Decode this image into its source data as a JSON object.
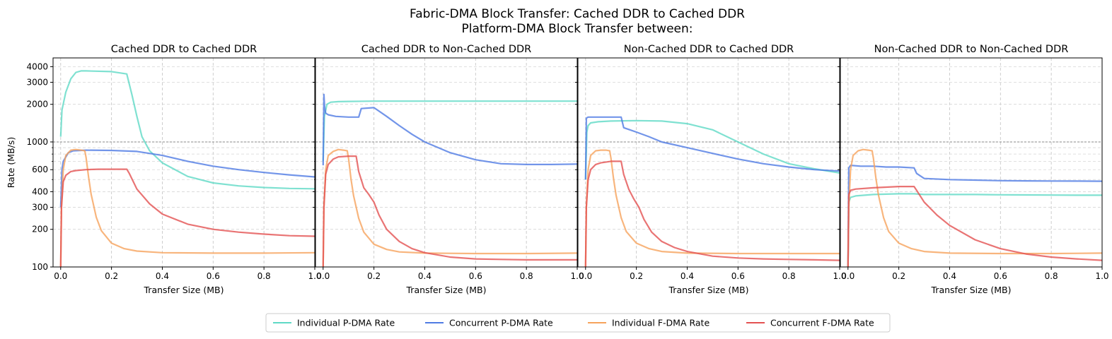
{
  "figure": {
    "title_line1": "Fabric-DMA Block Transfer: Cached DDR to Cached DDR",
    "title_line2": "Platform-DMA Block Transfer between:"
  },
  "legend": {
    "placement": "bottom-center",
    "items": [
      {
        "label": "Individual P-DMA Rate",
        "color": "#5fd9c6"
      },
      {
        "label": "Concurrent P-DMA Rate",
        "color": "#4f7be3"
      },
      {
        "label": "Individual F-DMA Rate",
        "color": "#f6a35c"
      },
      {
        "label": "Concurrent F-DMA Rate",
        "color": "#e35151"
      }
    ]
  },
  "chart_data": [
    {
      "type": "line",
      "title": "Cached DDR to Cached DDR",
      "xlabel": "Transfer Size (MB)",
      "ylabel": "Rate (MB/s)",
      "yscale": "log",
      "xlim": [
        -0.03,
        1.0
      ],
      "ylim": [
        100,
        4700
      ],
      "xticks": [
        "0.0",
        "0.2",
        "0.4",
        "0.6",
        "0.8",
        "1.0"
      ],
      "yticks": [
        "100",
        "200",
        "300",
        "400",
        "600",
        "1000",
        "2000",
        "3000",
        "4000"
      ],
      "reference_line_y": 1000,
      "grid": true,
      "series": [
        {
          "name": "Individual P-DMA Rate",
          "color": "#5fd9c6",
          "x": [
            0.0,
            0.005,
            0.02,
            0.04,
            0.06,
            0.08,
            0.1,
            0.2,
            0.26,
            0.28,
            0.3,
            0.32,
            0.35,
            0.4,
            0.5,
            0.6,
            0.7,
            0.8,
            0.9,
            1.0
          ],
          "y": [
            1100,
            1800,
            2500,
            3200,
            3600,
            3700,
            3700,
            3650,
            3500,
            2400,
            1600,
            1100,
            850,
            680,
            530,
            470,
            445,
            432,
            425,
            422
          ]
        },
        {
          "name": "Concurrent P-DMA Rate",
          "color": "#4f7be3",
          "x": [
            0.0,
            0.005,
            0.01,
            0.03,
            0.05,
            0.1,
            0.2,
            0.3,
            0.4,
            0.5,
            0.6,
            0.7,
            0.8,
            0.9,
            1.0
          ],
          "y": [
            300,
            600,
            700,
            820,
            850,
            860,
            855,
            840,
            780,
            700,
            640,
            600,
            570,
            545,
            525
          ]
        },
        {
          "name": "Individual F-DMA Rate",
          "color": "#f6a35c",
          "x": [
            0.0,
            0.003,
            0.01,
            0.02,
            0.04,
            0.06,
            0.08,
            0.095,
            0.1,
            0.11,
            0.12,
            0.14,
            0.16,
            0.2,
            0.25,
            0.3,
            0.4,
            0.6,
            0.8,
            1.0
          ],
          "y": [
            100,
            300,
            600,
            780,
            860,
            870,
            860,
            850,
            750,
            520,
            380,
            250,
            195,
            155,
            140,
            134,
            130,
            129,
            129,
            130
          ]
        },
        {
          "name": "Concurrent F-DMA Rate",
          "color": "#e35151",
          "x": [
            0.0,
            0.003,
            0.01,
            0.02,
            0.04,
            0.06,
            0.1,
            0.15,
            0.2,
            0.26,
            0.27,
            0.3,
            0.35,
            0.4,
            0.5,
            0.6,
            0.7,
            0.8,
            0.9,
            1.0
          ],
          "y": [
            100,
            300,
            480,
            540,
            580,
            590,
            600,
            605,
            605,
            605,
            560,
            420,
            320,
            265,
            220,
            200,
            190,
            183,
            178,
            176
          ]
        }
      ]
    },
    {
      "type": "line",
      "title": "Cached DDR to Non-Cached DDR",
      "xlabel": "Transfer Size (MB)",
      "ylabel": "",
      "yscale": "log",
      "xlim": [
        -0.03,
        1.0
      ],
      "ylim": [
        100,
        4700
      ],
      "xticks": [
        "0.0",
        "0.2",
        "0.4",
        "0.6",
        "0.8",
        "1.0"
      ],
      "yticks": [],
      "reference_line_y": 1000,
      "grid": true,
      "series": [
        {
          "name": "Individual P-DMA Rate",
          "color": "#5fd9c6",
          "x": [
            0.0,
            0.005,
            0.015,
            0.03,
            0.06,
            0.1,
            0.2,
            0.4,
            0.6,
            0.8,
            1.0
          ],
          "y": [
            700,
            1600,
            2000,
            2080,
            2100,
            2110,
            2120,
            2120,
            2120,
            2120,
            2120
          ]
        },
        {
          "name": "Concurrent P-DMA Rate",
          "color": "#4f7be3",
          "x": [
            0.0,
            0.003,
            0.006,
            0.01,
            0.02,
            0.05,
            0.1,
            0.14,
            0.15,
            0.2,
            0.25,
            0.3,
            0.35,
            0.4,
            0.5,
            0.6,
            0.7,
            0.8,
            0.9,
            1.0
          ],
          "y": [
            650,
            2400,
            1900,
            1700,
            1650,
            1600,
            1580,
            1580,
            1850,
            1880,
            1600,
            1350,
            1150,
            1000,
            820,
            720,
            670,
            660,
            660,
            665
          ]
        },
        {
          "name": "Individual F-DMA Rate",
          "color": "#f6a35c",
          "x": [
            0.0,
            0.003,
            0.01,
            0.02,
            0.04,
            0.06,
            0.08,
            0.095,
            0.1,
            0.11,
            0.12,
            0.14,
            0.16,
            0.2,
            0.25,
            0.3,
            0.4,
            0.6,
            0.8,
            1.0
          ],
          "y": [
            100,
            300,
            600,
            780,
            840,
            870,
            860,
            850,
            740,
            500,
            370,
            245,
            190,
            152,
            138,
            132,
            129,
            128,
            128,
            129
          ]
        },
        {
          "name": "Concurrent F-DMA Rate",
          "color": "#e35151",
          "x": [
            0.0,
            0.003,
            0.01,
            0.02,
            0.04,
            0.06,
            0.1,
            0.13,
            0.14,
            0.16,
            0.18,
            0.2,
            0.22,
            0.25,
            0.3,
            0.35,
            0.4,
            0.5,
            0.6,
            0.7,
            0.8,
            0.9,
            1.0
          ],
          "y": [
            100,
            300,
            550,
            660,
            730,
            760,
            770,
            770,
            580,
            430,
            380,
            330,
            260,
            200,
            160,
            140,
            130,
            120,
            116,
            115,
            114,
            114,
            114
          ]
        }
      ]
    },
    {
      "type": "line",
      "title": "Non-Cached DDR to Cached DDR",
      "xlabel": "Transfer Size (MB)",
      "ylabel": "",
      "yscale": "log",
      "xlim": [
        -0.03,
        1.0
      ],
      "ylim": [
        100,
        4700
      ],
      "xticks": [
        "0.0",
        "0.2",
        "0.4",
        "0.6",
        "0.8",
        "1.0"
      ],
      "yticks": [],
      "reference_line_y": 1000,
      "grid": true,
      "series": [
        {
          "name": "Individual P-DMA Rate",
          "color": "#5fd9c6",
          "x": [
            0.0,
            0.005,
            0.01,
            0.02,
            0.05,
            0.1,
            0.2,
            0.3,
            0.4,
            0.5,
            0.6,
            0.7,
            0.8,
            0.9,
            1.0
          ],
          "y": [
            500,
            1200,
            1350,
            1420,
            1450,
            1470,
            1480,
            1470,
            1400,
            1250,
            1000,
            800,
            670,
            610,
            565
          ]
        },
        {
          "name": "Concurrent P-DMA Rate",
          "color": "#4f7be3",
          "x": [
            0.0,
            0.003,
            0.01,
            0.05,
            0.1,
            0.14,
            0.15,
            0.2,
            0.25,
            0.3,
            0.4,
            0.5,
            0.6,
            0.7,
            0.8,
            0.9,
            1.0
          ],
          "y": [
            500,
            1550,
            1580,
            1580,
            1580,
            1580,
            1300,
            1200,
            1100,
            1000,
            900,
            810,
            730,
            670,
            630,
            600,
            585
          ]
        },
        {
          "name": "Individual F-DMA Rate",
          "color": "#f6a35c",
          "x": [
            0.0,
            0.003,
            0.01,
            0.02,
            0.04,
            0.06,
            0.08,
            0.095,
            0.1,
            0.11,
            0.12,
            0.14,
            0.16,
            0.2,
            0.25,
            0.3,
            0.4,
            0.6,
            0.8,
            1.0
          ],
          "y": [
            100,
            300,
            600,
            780,
            850,
            860,
            860,
            850,
            740,
            510,
            375,
            248,
            192,
            155,
            140,
            133,
            129,
            128,
            128,
            128
          ]
        },
        {
          "name": "Concurrent F-DMA Rate",
          "color": "#e35151",
          "x": [
            0.0,
            0.003,
            0.01,
            0.02,
            0.04,
            0.06,
            0.1,
            0.14,
            0.15,
            0.17,
            0.19,
            0.21,
            0.23,
            0.26,
            0.3,
            0.35,
            0.4,
            0.5,
            0.6,
            0.7,
            0.8,
            0.9,
            1.0
          ],
          "y": [
            100,
            300,
            500,
            600,
            660,
            680,
            700,
            700,
            550,
            420,
            350,
            300,
            240,
            190,
            160,
            143,
            133,
            122,
            118,
            116,
            115,
            114,
            113
          ]
        }
      ]
    },
    {
      "type": "line",
      "title": "Non-Cached DDR to Non-Cached DDR",
      "xlabel": "Transfer Size (MB)",
      "ylabel": "",
      "yscale": "log",
      "xlim": [
        -0.03,
        1.0
      ],
      "ylim": [
        100,
        4700
      ],
      "xticks": [
        "0.0",
        "0.2",
        "0.4",
        "0.6",
        "0.8",
        "1.0"
      ],
      "yticks": [],
      "reference_line_y": 1000,
      "grid": true,
      "series": [
        {
          "name": "Individual P-DMA Rate",
          "color": "#5fd9c6",
          "x": [
            0.0,
            0.003,
            0.01,
            0.03,
            0.1,
            0.2,
            0.26,
            0.3,
            0.4,
            0.5,
            0.6,
            0.7,
            0.8,
            0.9,
            1.0
          ],
          "y": [
            100,
            330,
            360,
            370,
            380,
            385,
            385,
            380,
            380,
            380,
            378,
            377,
            376,
            375,
            375
          ]
        },
        {
          "name": "Concurrent P-DMA Rate",
          "color": "#4f7be3",
          "x": [
            0.0,
            0.003,
            0.01,
            0.05,
            0.1,
            0.15,
            0.2,
            0.26,
            0.27,
            0.3,
            0.4,
            0.5,
            0.6,
            0.7,
            0.8,
            0.9,
            1.0
          ],
          "y": [
            100,
            620,
            650,
            640,
            640,
            630,
            630,
            620,
            560,
            510,
            500,
            495,
            490,
            488,
            487,
            486,
            485
          ]
        },
        {
          "name": "Individual F-DMA Rate",
          "color": "#f6a35c",
          "x": [
            0.0,
            0.003,
            0.01,
            0.02,
            0.04,
            0.06,
            0.08,
            0.095,
            0.1,
            0.11,
            0.12,
            0.14,
            0.16,
            0.2,
            0.25,
            0.3,
            0.4,
            0.6,
            0.8,
            1.0
          ],
          "y": [
            100,
            300,
            600,
            780,
            850,
            870,
            860,
            850,
            740,
            510,
            375,
            248,
            192,
            155,
            140,
            133,
            129,
            128,
            128,
            129
          ]
        },
        {
          "name": "Concurrent F-DMA Rate",
          "color": "#e35151",
          "x": [
            0.0,
            0.003,
            0.01,
            0.03,
            0.1,
            0.2,
            0.26,
            0.27,
            0.3,
            0.35,
            0.4,
            0.5,
            0.6,
            0.7,
            0.8,
            0.9,
            1.0
          ],
          "y": [
            100,
            380,
            410,
            420,
            430,
            440,
            440,
            410,
            330,
            260,
            215,
            165,
            140,
            127,
            120,
            116,
            113
          ]
        }
      ]
    }
  ]
}
